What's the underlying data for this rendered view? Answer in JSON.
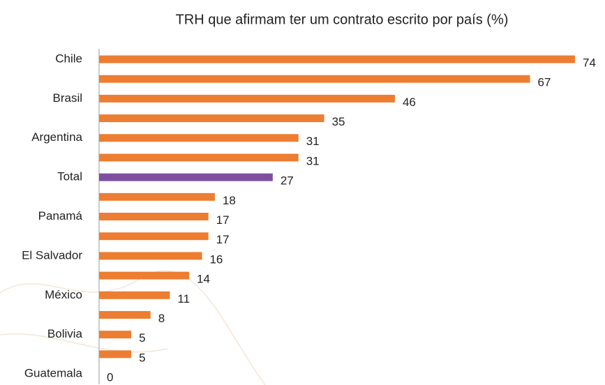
{
  "chart_data": {
    "type": "barh",
    "title": "TRH que afirmam ter um contrato escrito por país (%)",
    "categories": [
      "Chile",
      null,
      "Brasil",
      null,
      "Argentina",
      null,
      "Total",
      null,
      "Panamá",
      null,
      "El Salvador",
      null,
      "México",
      null,
      "Bolivia",
      null,
      "Guatemala"
    ],
    "values": [
      74,
      67,
      46,
      35,
      31,
      31,
      27,
      18,
      17,
      17,
      16,
      14,
      11,
      8,
      5,
      5,
      0
    ],
    "colors": [
      "#ed7d31",
      "#ed7d31",
      "#ed7d31",
      "#ed7d31",
      "#ed7d31",
      "#ed7d31",
      "#7f4f9f",
      "#ed7d31",
      "#ed7d31",
      "#ed7d31",
      "#ed7d31",
      "#ed7d31",
      "#ed7d31",
      "#ed7d31",
      "#ed7d31",
      "#ed7d31",
      "#ed7d31"
    ],
    "xlim": [
      0,
      74
    ]
  }
}
